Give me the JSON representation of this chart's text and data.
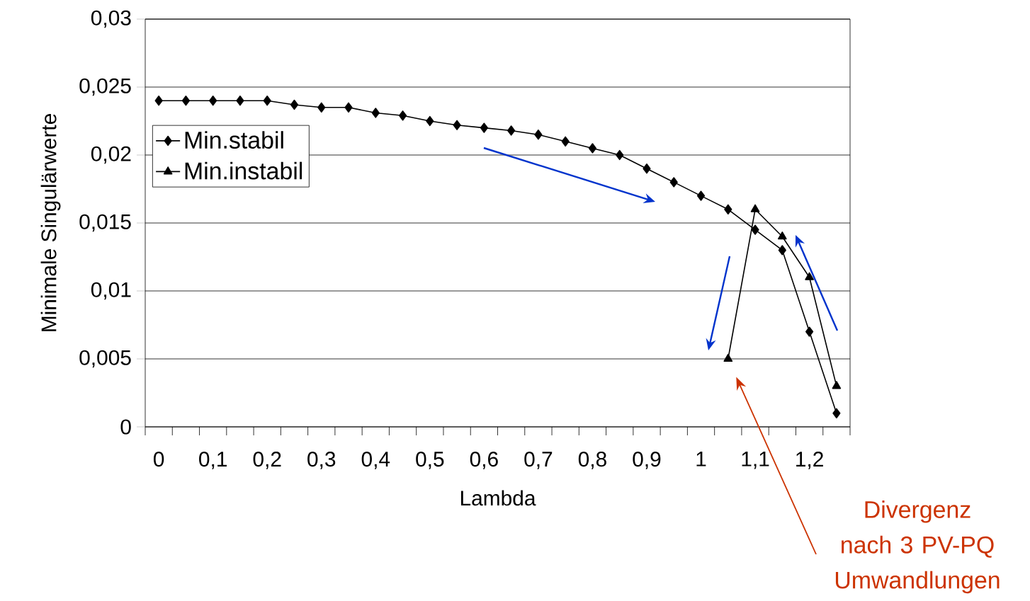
{
  "chart_data": {
    "type": "line",
    "xlabel": "Lambda",
    "ylabel": "Minimale Singulärwerte",
    "categories": [
      "0",
      null,
      "0,1",
      null,
      "0,2",
      null,
      "0,3",
      null,
      "0,4",
      null,
      "0,5",
      null,
      "0,6",
      null,
      "0,7",
      null,
      "0,8",
      null,
      "0,9",
      null,
      "1",
      null,
      "1,1",
      null,
      "1,2",
      null
    ],
    "series": [
      {
        "name": "Min.stabil",
        "color": "#000000",
        "marker": "diamond",
        "values": [
          0.024,
          0.024,
          0.024,
          0.024,
          0.024,
          0.0237,
          0.0235,
          0.0235,
          0.0231,
          0.0229,
          0.0225,
          0.0222,
          0.022,
          0.0218,
          0.0215,
          0.021,
          0.0205,
          0.02,
          0.019,
          0.018,
          0.017,
          0.016,
          0.0145,
          0.013,
          0.007,
          0.001
        ]
      },
      {
        "name": "Min.instabil",
        "color": "#000000",
        "marker": "triangle",
        "values": [
          null,
          null,
          null,
          null,
          null,
          null,
          null,
          null,
          null,
          null,
          null,
          null,
          null,
          null,
          null,
          null,
          null,
          null,
          null,
          null,
          null,
          0.005,
          0.016,
          0.014,
          0.011,
          0.003
        ]
      }
    ],
    "ylim": [
      0,
      0.03
    ],
    "yticks": [
      0,
      {
        "value": 0.005,
        "label": "0,005"
      },
      {
        "value": 0.01,
        "label": "0,01"
      },
      {
        "value": 0.015,
        "label": "0,015"
      },
      {
        "value": 0.02,
        "label": "0,02"
      },
      {
        "value": 0.025,
        "label": "0,025"
      },
      {
        "value": 0.03,
        "label": "0,03"
      }
    ],
    "grid": "y",
    "legend": "top left",
    "line_style": "solid",
    "annotations": [
      "Divergenz nach 3 PV-PQ Umwandlungen"
    ]
  }
}
